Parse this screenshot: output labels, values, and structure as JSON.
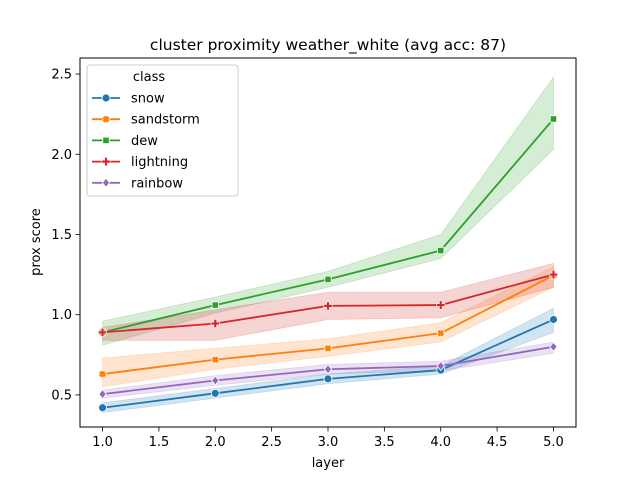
{
  "chart_data": {
    "type": "line",
    "title": "cluster proximity weather_white (avg acc: 87)",
    "xlabel": "layer",
    "ylabel": "prox score",
    "xlim": [
      0.8,
      5.2
    ],
    "ylim": [
      0.3,
      2.6
    ],
    "xticks": [
      "1.0",
      "1.5",
      "2.0",
      "2.5",
      "3.0",
      "3.5",
      "4.0",
      "4.5",
      "5.0"
    ],
    "yticks": [
      "0.5",
      "1.0",
      "1.5",
      "2.0",
      "2.5"
    ],
    "grid": false,
    "legend": {
      "title": "class",
      "placement": "top-left"
    },
    "x": [
      1,
      2,
      3,
      4,
      5
    ],
    "series": [
      {
        "name": "snow",
        "color": "#1f77b4",
        "marker": "circle",
        "values": [
          0.42,
          0.51,
          0.6,
          0.655,
          0.97
        ],
        "ci_low": [
          0.39,
          0.48,
          0.57,
          0.63,
          0.89
        ],
        "ci_high": [
          0.45,
          0.54,
          0.63,
          0.68,
          1.04
        ]
      },
      {
        "name": "sandstorm",
        "color": "#ff7f0e",
        "marker": "x",
        "values": [
          0.63,
          0.72,
          0.79,
          0.885,
          1.245
        ],
        "ci_low": [
          0.55,
          0.66,
          0.74,
          0.83,
          1.17
        ],
        "ci_high": [
          0.73,
          0.79,
          0.85,
          0.95,
          1.3
        ]
      },
      {
        "name": "dew",
        "color": "#2ca02c",
        "marker": "square",
        "values": [
          0.89,
          1.06,
          1.22,
          1.4,
          2.22
        ],
        "ci_low": [
          0.81,
          1.01,
          1.17,
          1.35,
          2.03
        ],
        "ci_high": [
          0.96,
          1.11,
          1.27,
          1.5,
          2.48
        ]
      },
      {
        "name": "lightning",
        "color": "#d62728",
        "marker": "plus",
        "values": [
          0.89,
          0.945,
          1.055,
          1.06,
          1.25
        ],
        "ci_low": [
          0.84,
          0.84,
          0.97,
          0.98,
          1.17
        ],
        "ci_high": [
          0.92,
          1.03,
          1.14,
          1.14,
          1.32
        ]
      },
      {
        "name": "rainbow",
        "color": "#9467bd",
        "marker": "diamond",
        "values": [
          0.505,
          0.59,
          0.66,
          0.68,
          0.8
        ],
        "ci_low": [
          0.48,
          0.56,
          0.63,
          0.65,
          0.76
        ],
        "ci_high": [
          0.53,
          0.62,
          0.69,
          0.71,
          0.83
        ]
      }
    ]
  }
}
